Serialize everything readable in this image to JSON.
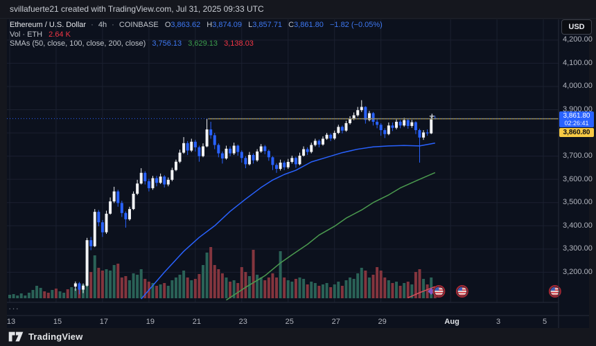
{
  "header": {
    "attribution": "svillafuerte21 created with TradingView.com, Jul 31, 2025 09:33 UTC"
  },
  "legend": {
    "symbol": "Ethereum / U.S. Dollar",
    "separator": "·",
    "interval": "4h",
    "exchange": "COINBASE",
    "ohlc": [
      {
        "k": "O",
        "v": "3,863.62"
      },
      {
        "k": "H",
        "v": "3,874.09"
      },
      {
        "k": "L",
        "v": "3,857.71"
      },
      {
        "k": "C",
        "v": "3,861.80"
      }
    ],
    "change": "−1.82 (−0.05%)",
    "vol_label": "Vol · ETH",
    "vol_value": "2.64 K",
    "sma_label": "SMAs (50, close, 100, close, 200, close)",
    "sma_values": [
      {
        "v": "3,756.13"
      },
      {
        "v": "3,629.13"
      },
      {
        "v": "3,138.03"
      }
    ]
  },
  "price_scale": {
    "currency": "USD",
    "labels": [
      "4,200.00",
      "4,100.00",
      "4,000.00",
      "3,900.00",
      "3,700.00",
      "3,600.00",
      "3,500.00",
      "3,400.00",
      "3,300.00",
      "3,200.00"
    ],
    "last_price_badge": {
      "price": "3,861.80",
      "countdown": "02:26:41"
    },
    "ray_badge": {
      "price": "3,860.80"
    }
  },
  "time_scale": {
    "ticks": [
      {
        "label": "13",
        "i": 0
      },
      {
        "label": "15",
        "i": 12
      },
      {
        "label": "17",
        "i": 24
      },
      {
        "label": "19",
        "i": 36
      },
      {
        "label": "21",
        "i": 48
      },
      {
        "label": "23",
        "i": 60
      },
      {
        "label": "25",
        "i": 72
      },
      {
        "label": "27",
        "i": 84
      },
      {
        "label": "29",
        "i": 96
      },
      {
        "label": "Aug",
        "i": 114,
        "bold": true
      },
      {
        "label": "3",
        "i": 126
      },
      {
        "label": "5",
        "i": 138
      }
    ]
  },
  "pane_toggle": {
    "label": "···"
  },
  "footer": {
    "brand": "TradingView"
  },
  "colors": {
    "up": "#f2f3f5",
    "down": "#2962ff",
    "vol_up": "#2a6257",
    "vol_dn": "#84353e",
    "sma50": "#2962ff",
    "sma100": "#4b9b4f",
    "sma200": "#d8505c",
    "ray": "#a1914b",
    "price_line": "#2962ff",
    "grid": "#1b2130",
    "border": "#262b39",
    "flag_ring": "#a52834",
    "diamond": "#7e57c2"
  },
  "chart_data": {
    "type": "candlestick+volume",
    "title": "Ethereum / U.S. Dollar",
    "exchange": "COINBASE",
    "interval": "4h",
    "y_axis": {
      "visible_min": 3070,
      "visible_max": 4289,
      "grid": [
        4200,
        4100,
        4000,
        3900,
        3800,
        3700,
        3600,
        3500,
        3400,
        3300,
        3200
      ]
    },
    "price_line": {
      "price": 3861.8
    },
    "ray": {
      "price": 3860.8,
      "from_bar": 51.3
    },
    "plus_marker": {
      "bar": 109.2,
      "price": 3872
    },
    "event_markers": {
      "flags_at_bars": [
        111,
        117,
        141
      ],
      "diamond_at_bar": 109
    },
    "sma50_points": [
      [
        34,
        3085
      ],
      [
        40,
        3200
      ],
      [
        45,
        3290
      ],
      [
        49,
        3350
      ],
      [
        53,
        3400
      ],
      [
        57,
        3462
      ],
      [
        61,
        3515
      ],
      [
        65,
        3565
      ],
      [
        68,
        3597
      ],
      [
        71,
        3621
      ],
      [
        74,
        3639
      ],
      [
        78,
        3675
      ],
      [
        82,
        3695
      ],
      [
        86,
        3715
      ],
      [
        90,
        3730
      ],
      [
        94,
        3740
      ],
      [
        98,
        3744
      ],
      [
        102,
        3746
      ],
      [
        106,
        3744
      ],
      [
        110,
        3756.13
      ]
    ],
    "sma100_points": [
      [
        56,
        3080
      ],
      [
        61,
        3135
      ],
      [
        66,
        3185
      ],
      [
        70,
        3240
      ],
      [
        73,
        3275
      ],
      [
        77,
        3320
      ],
      [
        80,
        3360
      ],
      [
        84,
        3398
      ],
      [
        87,
        3433
      ],
      [
        91,
        3468
      ],
      [
        94,
        3500
      ],
      [
        98,
        3533
      ],
      [
        101,
        3563
      ],
      [
        105,
        3593
      ],
      [
        110,
        3629.13
      ]
    ],
    "sma200_points": [
      [
        103,
        3090
      ],
      [
        106,
        3112
      ],
      [
        110,
        3138.03
      ]
    ],
    "bars": [
      [
        null,
        null,
        null,
        null,
        5,
        1
      ],
      [
        null,
        null,
        null,
        null,
        6,
        1
      ],
      [
        null,
        null,
        null,
        null,
        4,
        1
      ],
      [
        null,
        null,
        null,
        null,
        7,
        1
      ],
      [
        null,
        null,
        null,
        null,
        4,
        1
      ],
      [
        null,
        null,
        null,
        null,
        8,
        1
      ],
      [
        null,
        null,
        null,
        null,
        12,
        1
      ],
      [
        null,
        null,
        null,
        null,
        18,
        1
      ],
      [
        null,
        null,
        null,
        null,
        15,
        1
      ],
      [
        null,
        null,
        null,
        null,
        10,
        0
      ],
      [
        null,
        null,
        null,
        null,
        8,
        0
      ],
      [
        null,
        null,
        null,
        null,
        12,
        1
      ],
      [
        null,
        null,
        null,
        null,
        14,
        0
      ],
      [
        null,
        null,
        null,
        null,
        10,
        1
      ],
      [
        null,
        null,
        null,
        null,
        8,
        1
      ],
      [
        null,
        null,
        null,
        null,
        13,
        0
      ],
      [
        null,
        null,
        null,
        null,
        16,
        1
      ],
      [
        3138,
        3160,
        3120,
        3152,
        14,
        1
      ],
      [
        3152,
        3158,
        3105,
        3125,
        16,
        0
      ],
      [
        3125,
        3152,
        3110,
        3142,
        20,
        1
      ],
      [
        3142,
        3348,
        3138,
        3338,
        55,
        1
      ],
      [
        3338,
        3352,
        3295,
        3312,
        38,
        0
      ],
      [
        3312,
        3472,
        3308,
        3460,
        62,
        1
      ],
      [
        3460,
        3468,
        3398,
        3415,
        44,
        0
      ],
      [
        3415,
        3425,
        3352,
        3372,
        40,
        0
      ],
      [
        3372,
        3465,
        3365,
        3452,
        42,
        1
      ],
      [
        3452,
        3522,
        3448,
        3505,
        40,
        1
      ],
      [
        3505,
        3568,
        3498,
        3548,
        48,
        1
      ],
      [
        3548,
        3555,
        3482,
        3498,
        50,
        0
      ],
      [
        3498,
        3508,
        3438,
        3455,
        30,
        0
      ],
      [
        3455,
        3462,
        3392,
        3428,
        32,
        0
      ],
      [
        3428,
        3482,
        3422,
        3472,
        26,
        1
      ],
      [
        3472,
        3548,
        3468,
        3538,
        36,
        1
      ],
      [
        3538,
        3598,
        3532,
        3582,
        34,
        1
      ],
      [
        3582,
        3648,
        3578,
        3628,
        42,
        1
      ],
      [
        3628,
        3635,
        3578,
        3592,
        28,
        0
      ],
      [
        3592,
        3602,
        3548,
        3562,
        24,
        0
      ],
      [
        3562,
        3615,
        3555,
        3605,
        22,
        1
      ],
      [
        3605,
        3615,
        3570,
        3585,
        18,
        0
      ],
      [
        3585,
        3625,
        3580,
        3612,
        20,
        1
      ],
      [
        3612,
        3618,
        3565,
        3578,
        22,
        0
      ],
      [
        3578,
        3608,
        3570,
        3598,
        18,
        1
      ],
      [
        3598,
        3650,
        3592,
        3640,
        26,
        1
      ],
      [
        3640,
        3685,
        3635,
        3676,
        30,
        1
      ],
      [
        3676,
        3728,
        3670,
        3715,
        34,
        1
      ],
      [
        3715,
        3782,
        3710,
        3756,
        40,
        1
      ],
      [
        3756,
        3765,
        3705,
        3724,
        30,
        0
      ],
      [
        3724,
        3775,
        3718,
        3762,
        26,
        1
      ],
      [
        3762,
        3770,
        3720,
        3738,
        28,
        0
      ],
      [
        3738,
        3745,
        3676,
        3700,
        35,
        0
      ],
      [
        3700,
        3755,
        3695,
        3742,
        48,
        1
      ],
      [
        3742,
        3860,
        3738,
        3815,
        66,
        1
      ],
      [
        3815,
        3848,
        3775,
        3790,
        74,
        0
      ],
      [
        3790,
        3800,
        3730,
        3748,
        48,
        0
      ],
      [
        3748,
        3755,
        3695,
        3712,
        42,
        0
      ],
      [
        3712,
        3720,
        3668,
        3690,
        36,
        0
      ],
      [
        3690,
        3745,
        3685,
        3732,
        30,
        1
      ],
      [
        3732,
        3742,
        3700,
        3712,
        24,
        0
      ],
      [
        3712,
        3758,
        3705,
        3745,
        26,
        1
      ],
      [
        3745,
        3750,
        3702,
        3718,
        22,
        0
      ],
      [
        3718,
        3725,
        3672,
        3692,
        45,
        0
      ],
      [
        3692,
        3700,
        3648,
        3665,
        38,
        0
      ],
      [
        3665,
        3718,
        3660,
        3705,
        32,
        1
      ],
      [
        3705,
        3712,
        3668,
        3682,
        70,
        0
      ],
      [
        3682,
        3730,
        3676,
        3720,
        34,
        1
      ],
      [
        3720,
        3752,
        3714,
        3742,
        30,
        1
      ],
      [
        3742,
        3748,
        3708,
        3722,
        26,
        0
      ],
      [
        3722,
        3728,
        3680,
        3695,
        30,
        0
      ],
      [
        3695,
        3700,
        3640,
        3662,
        36,
        0
      ],
      [
        3662,
        3670,
        3628,
        3645,
        30,
        0
      ],
      [
        3645,
        3685,
        3638,
        3672,
        68,
        1
      ],
      [
        3672,
        3680,
        3640,
        3652,
        30,
        0
      ],
      [
        3652,
        3688,
        3645,
        3675,
        26,
        1
      ],
      [
        3675,
        3702,
        3668,
        3692,
        24,
        1
      ],
      [
        3692,
        3698,
        3650,
        3665,
        28,
        0
      ],
      [
        3665,
        3715,
        3660,
        3702,
        30,
        1
      ],
      [
        3702,
        3742,
        3698,
        3730,
        28,
        1
      ],
      [
        3730,
        3738,
        3705,
        3718,
        20,
        0
      ],
      [
        3718,
        3758,
        3712,
        3748,
        24,
        1
      ],
      [
        3748,
        3775,
        3742,
        3766,
        22,
        1
      ],
      [
        3766,
        3772,
        3738,
        3750,
        18,
        0
      ],
      [
        3750,
        3785,
        3745,
        3775,
        20,
        1
      ],
      [
        3775,
        3800,
        3770,
        3792,
        22,
        1
      ],
      [
        3792,
        3798,
        3765,
        3776,
        16,
        0
      ],
      [
        3776,
        3810,
        3770,
        3800,
        20,
        1
      ],
      [
        3800,
        3835,
        3795,
        3826,
        24,
        1
      ],
      [
        3826,
        3832,
        3798,
        3810,
        18,
        0
      ],
      [
        3810,
        3852,
        3805,
        3842,
        26,
        1
      ],
      [
        3842,
        3872,
        3836,
        3862,
        30,
        1
      ],
      [
        3862,
        3888,
        3855,
        3876,
        28,
        1
      ],
      [
        3876,
        3912,
        3870,
        3898,
        36,
        1
      ],
      [
        3898,
        3941,
        3890,
        3912,
        44,
        1
      ],
      [
        3912,
        3915,
        3840,
        3856,
        40,
        0
      ],
      [
        3856,
        3895,
        3850,
        3885,
        30,
        1
      ],
      [
        3885,
        3890,
        3832,
        3848,
        34,
        0
      ],
      [
        3848,
        3858,
        3820,
        3835,
        45,
        0
      ],
      [
        3835,
        3842,
        3788,
        3812,
        40,
        0
      ],
      [
        3812,
        3820,
        3778,
        3795,
        30,
        0
      ],
      [
        3795,
        3845,
        3790,
        3832,
        26,
        1
      ],
      [
        3832,
        3845,
        3808,
        3822,
        22,
        0
      ],
      [
        3822,
        3858,
        3815,
        3848,
        24,
        1
      ],
      [
        3848,
        3855,
        3820,
        3832,
        18,
        0
      ],
      [
        3832,
        3865,
        3826,
        3855,
        22,
        1
      ],
      [
        3855,
        3860,
        3818,
        3830,
        24,
        0
      ],
      [
        3830,
        3856,
        3822,
        3846,
        20,
        1
      ],
      [
        3846,
        3850,
        3795,
        3812,
        38,
        0
      ],
      [
        3812,
        3818,
        3672,
        3780,
        42,
        0
      ],
      [
        3780,
        3812,
        3770,
        3802,
        28,
        1
      ],
      [
        3802,
        3815,
        3788,
        3798,
        20,
        0
      ],
      [
        3798,
        3868,
        3795,
        3858,
        30,
        1
      ],
      [
        3863.62,
        3874.09,
        3857.71,
        3861.8,
        12,
        0
      ]
    ]
  }
}
